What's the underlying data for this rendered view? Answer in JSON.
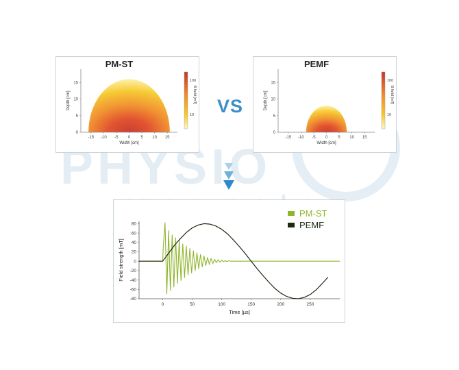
{
  "watermark": {
    "line1": "PHYSIO",
    "line2": "magneto"
  },
  "comparison_word": "VS",
  "colors": {
    "pmst": "#8fb52c",
    "pemf": "#1b2a10",
    "accent": "#3d8fc7",
    "border": "#c9d3dc"
  },
  "chart_data": [
    {
      "type": "heatmap",
      "title": "PM-ST",
      "xlabel": "Width [cm]",
      "ylabel": "Depth [cm]",
      "xticks": [
        "-15",
        "-10",
        "-5",
        "0",
        "5",
        "10",
        "15"
      ],
      "yticks": [
        "0",
        "5",
        "10",
        "15"
      ],
      "xlim": [
        -19,
        19
      ],
      "ylim": [
        0,
        19
      ],
      "field_extent_cm": 16,
      "colorbar": {
        "label": "B field [mT]",
        "ticks": [
          "100",
          "10"
        ]
      }
    },
    {
      "type": "heatmap",
      "title": "PEMF",
      "xlabel": "Width [cm]",
      "ylabel": "Depth [cm]",
      "xticks": [
        "-15",
        "-10",
        "-5",
        "0",
        "5",
        "10",
        "15"
      ],
      "yticks": [
        "0",
        "5",
        "10",
        "15"
      ],
      "xlim": [
        -19,
        19
      ],
      "ylim": [
        0,
        19
      ],
      "field_extent_cm": 8,
      "colorbar": {
        "label": "B field [mT]",
        "ticks": [
          "100",
          "10"
        ]
      }
    },
    {
      "type": "line",
      "xlabel": "Time [µs]",
      "ylabel": "Field strength [mT]",
      "xticks": [
        "0",
        "50",
        "100",
        "150",
        "200",
        "250"
      ],
      "yticks": [
        "80",
        "60",
        "40",
        "20",
        "0",
        "-20",
        "-40",
        "-60",
        "-80"
      ],
      "xlim": [
        -40,
        300
      ],
      "ylim": [
        -80,
        85
      ],
      "series": [
        {
          "name": "PM-ST",
          "color": "#8fb52c",
          "x": [
            -40,
            0,
            1,
            4,
            7,
            10,
            13,
            16,
            19,
            22,
            25,
            28,
            31,
            34,
            37,
            40,
            43,
            46,
            49,
            52,
            55,
            58,
            61,
            64,
            67,
            70,
            73,
            76,
            79,
            82,
            85,
            88,
            91,
            94,
            97,
            100,
            103,
            106,
            109,
            112,
            115,
            118,
            121,
            124,
            127,
            130,
            133,
            140,
            300
          ],
          "y": [
            0,
            0,
            30,
            82,
            -70,
            65,
            -62,
            56,
            -55,
            50,
            -47,
            44,
            -41,
            37,
            -35,
            32,
            -29,
            27,
            -25,
            22,
            -20,
            18,
            -16,
            14,
            -12,
            11,
            -9,
            8,
            -7,
            6,
            -5,
            4,
            -3,
            3,
            -2,
            2,
            -1,
            1,
            -1,
            1,
            0,
            0,
            0,
            0,
            0,
            0,
            0,
            0,
            0
          ]
        },
        {
          "name": "PEMF",
          "color": "#1b2a10",
          "x": [
            -40,
            0,
            10,
            20,
            30,
            40,
            50,
            60,
            70,
            80,
            90,
            100,
            110,
            120,
            130,
            140,
            150,
            160,
            170,
            180,
            190,
            200,
            210,
            220,
            230,
            240,
            250,
            260,
            270,
            280
          ],
          "y": [
            0,
            0,
            17,
            34,
            48,
            61,
            71,
            77,
            80,
            79,
            75,
            68,
            58,
            45,
            31,
            16,
            0,
            -16,
            -31,
            -45,
            -58,
            -68,
            -75,
            -79,
            -80,
            -77,
            -71,
            -61,
            -48,
            -34
          ]
        }
      ]
    }
  ]
}
